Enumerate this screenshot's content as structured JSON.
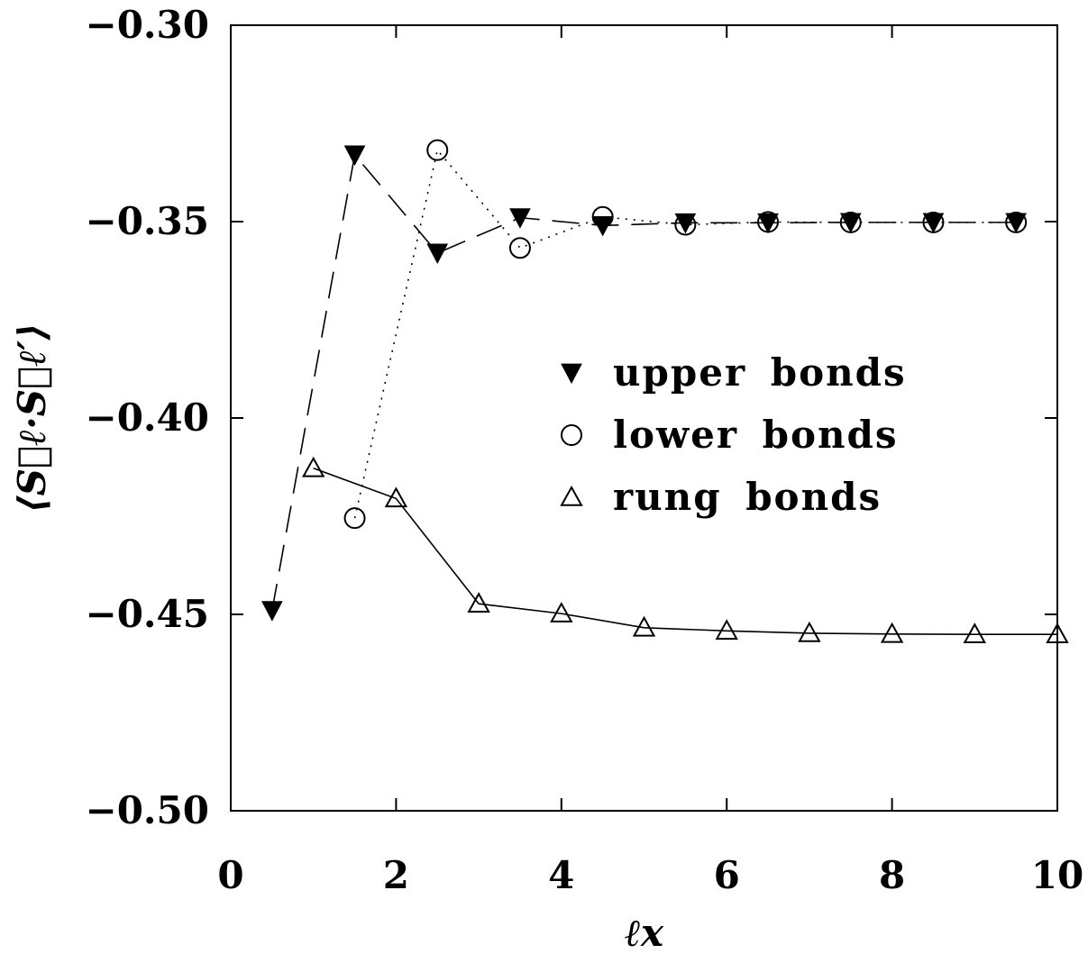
{
  "chart_data": {
    "type": "line",
    "xlabel": "ℓx",
    "ylabel": "⟨S⃗ℓ·S⃗ℓ′⟩",
    "xlim": [
      0,
      10
    ],
    "ylim": [
      -0.5,
      -0.3
    ],
    "x_ticks": [
      0,
      2,
      4,
      6,
      8,
      10
    ],
    "x_tick_labels": [
      "0",
      "2",
      "4",
      "6",
      "8",
      "10"
    ],
    "y_ticks": [
      -0.5,
      -0.45,
      -0.4,
      -0.35,
      -0.3
    ],
    "y_tick_labels": [
      "−0.50",
      "−0.45",
      "−0.40",
      "−0.35",
      "−0.30"
    ],
    "grid": false,
    "legend_position": "right-middle",
    "series": [
      {
        "name": "upper bonds",
        "marker": "filled-triangle-down",
        "line": "dashed",
        "x": [
          0.5,
          1.5,
          2.5,
          3.5,
          4.5,
          5.5,
          6.5,
          7.5,
          8.5,
          9.5
        ],
        "values": [
          -0.449,
          -0.333,
          -0.358,
          -0.349,
          -0.351,
          -0.3503,
          -0.3503,
          -0.3502,
          -0.3502,
          -0.3502
        ]
      },
      {
        "name": "lower bonds",
        "marker": "open-circle",
        "line": "dotted",
        "x": [
          1.5,
          2.5,
          3.5,
          4.5,
          5.5,
          6.5,
          7.5,
          8.5,
          9.5
        ],
        "values": [
          -0.4255,
          -0.3318,
          -0.3567,
          -0.3488,
          -0.3508,
          -0.3501,
          -0.3502,
          -0.3502,
          -0.3502
        ]
      },
      {
        "name": "rung bonds",
        "marker": "open-triangle-up",
        "line": "solid",
        "x": [
          1,
          2,
          3,
          4,
          5,
          6,
          7,
          8,
          9,
          10
        ],
        "values": [
          -0.4128,
          -0.4205,
          -0.4473,
          -0.4498,
          -0.4534,
          -0.4542,
          -0.4548,
          -0.455,
          -0.4551,
          -0.4551
        ]
      }
    ]
  }
}
